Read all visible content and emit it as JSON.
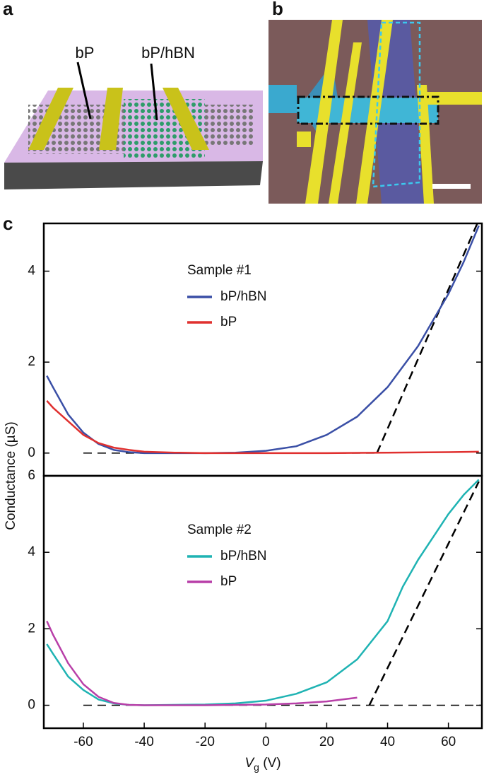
{
  "panels": {
    "a": {
      "label": "a",
      "texts": [
        "bP",
        "bP/hBN"
      ]
    },
    "b": {
      "label": "b"
    },
    "c": {
      "label": "c"
    }
  },
  "chart_data": [
    {
      "type": "line",
      "ylabel": "Conductance (µS)",
      "legend_title": "Sample #1",
      "xlim": [
        -73,
        71
      ],
      "ylim": [
        -0.5,
        5.05
      ],
      "yticks": [
        0,
        2,
        4
      ],
      "series": [
        {
          "name": "bP/hBN",
          "color": "#3a4fa6",
          "x": [
            -72,
            -70,
            -65,
            -60,
            -55,
            -50,
            -45,
            -40,
            -20,
            -10,
            0,
            10,
            20,
            30,
            40,
            50,
            60,
            65,
            70
          ],
          "values": [
            1.7,
            1.45,
            0.85,
            0.45,
            0.2,
            0.07,
            0.02,
            0,
            0,
            0.01,
            0.05,
            0.15,
            0.4,
            0.8,
            1.45,
            2.35,
            3.5,
            4.2,
            5.0
          ]
        },
        {
          "name": "bP",
          "color": "#e0302f",
          "x": [
            -72,
            -70,
            -65,
            -60,
            -55,
            -50,
            -45,
            -40,
            -30,
            -20,
            0,
            20,
            40,
            60,
            70
          ],
          "values": [
            1.15,
            1.0,
            0.7,
            0.4,
            0.22,
            0.12,
            0.07,
            0.03,
            0.01,
            0,
            0,
            0,
            0.01,
            0.02,
            0.03
          ]
        }
      ],
      "guides": [
        {
          "x": [
            -60,
            36.5
          ],
          "values": [
            0,
            0
          ]
        },
        {
          "x": [
            36.5,
            69.5
          ],
          "values": [
            0,
            5.05
          ]
        }
      ]
    },
    {
      "type": "line",
      "xlabel": {
        "symbol": "V",
        "subscript": "g",
        "unit": " (V)"
      },
      "legend_title": "Sample #2",
      "xlim": [
        -73,
        71
      ],
      "xticks": [
        -60,
        -40,
        -20,
        0,
        20,
        40,
        60
      ],
      "ylim": [
        -0.6,
        6
      ],
      "yticks": [
        0,
        2,
        4,
        6
      ],
      "series": [
        {
          "name": "bP/hBN",
          "color": "#1fb3b3",
          "x": [
            -72,
            -70,
            -65,
            -60,
            -55,
            -50,
            -45,
            -40,
            -20,
            -10,
            0,
            10,
            20,
            30,
            40,
            45,
            50,
            55,
            60,
            65,
            70
          ],
          "values": [
            1.6,
            1.35,
            0.75,
            0.4,
            0.15,
            0.05,
            0.01,
            0,
            0.02,
            0.05,
            0.12,
            0.3,
            0.6,
            1.2,
            2.2,
            3.1,
            3.8,
            4.4,
            5.0,
            5.5,
            5.9
          ]
        },
        {
          "name": "bP",
          "color": "#b83fa8",
          "x": [
            -72,
            -70,
            -65,
            -60,
            -55,
            -50,
            -45,
            -40,
            -20,
            0,
            10,
            20,
            30
          ],
          "values": [
            2.2,
            1.85,
            1.1,
            0.55,
            0.22,
            0.06,
            0.01,
            0,
            0,
            0.02,
            0.05,
            0.1,
            0.2
          ]
        }
      ],
      "guides": [
        {
          "x": [
            -60,
            71
          ],
          "values": [
            0,
            0
          ]
        },
        {
          "x": [
            34,
            70
          ],
          "values": [
            0,
            5.85
          ]
        }
      ]
    }
  ]
}
